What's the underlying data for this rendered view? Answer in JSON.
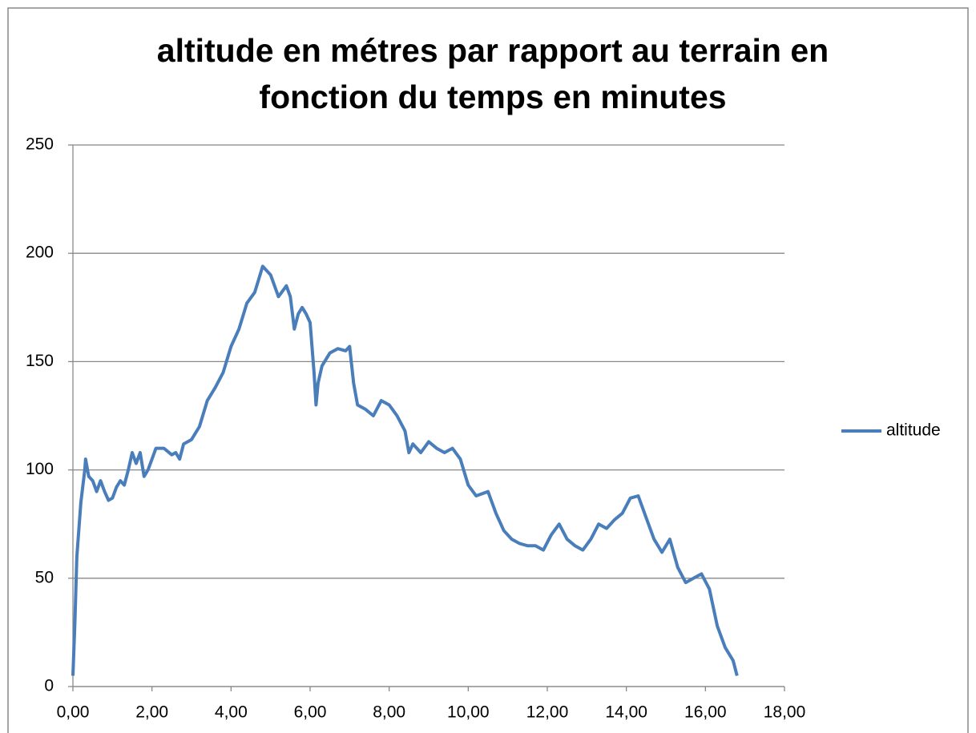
{
  "chart_data": {
    "type": "line",
    "title": "altitude en métres par rapport au terrain en fonction du temps en minutes",
    "legend": "right",
    "grid": true,
    "xlim": [
      0,
      18
    ],
    "xticks": [
      {
        "value": 0,
        "label": "0,00"
      },
      {
        "value": 2,
        "label": "2,00"
      },
      {
        "value": 4,
        "label": "4,00"
      },
      {
        "value": 6,
        "label": "6,00"
      },
      {
        "value": 8,
        "label": "8,00"
      },
      {
        "value": 10,
        "label": "10,00"
      },
      {
        "value": 12,
        "label": "12,00"
      },
      {
        "value": 14,
        "label": "14,00"
      },
      {
        "value": 16,
        "label": "16,00"
      },
      {
        "value": 18,
        "label": "18,00"
      }
    ],
    "ylim": [
      0,
      250
    ],
    "yticks": [
      0,
      50,
      100,
      150,
      200,
      250
    ],
    "x": [
      0,
      0.05,
      0.1,
      0.2,
      0.3,
      0.32,
      0.4,
      0.5,
      0.6,
      0.7,
      0.8,
      0.9,
      1.0,
      1.1,
      1.2,
      1.3,
      1.4,
      1.5,
      1.6,
      1.7,
      1.8,
      1.9,
      2.0,
      2.1,
      2.3,
      2.5,
      2.6,
      2.7,
      2.8,
      3.0,
      3.2,
      3.4,
      3.6,
      3.8,
      4.0,
      4.2,
      4.4,
      4.6,
      4.8,
      5.0,
      5.2,
      5.4,
      5.5,
      5.6,
      5.7,
      5.8,
      5.9,
      6.0,
      6.1,
      6.15,
      6.2,
      6.3,
      6.5,
      6.7,
      6.9,
      7.0,
      7.1,
      7.2,
      7.4,
      7.6,
      7.8,
      8.0,
      8.2,
      8.4,
      8.5,
      8.6,
      8.8,
      9.0,
      9.2,
      9.4,
      9.6,
      9.8,
      10.0,
      10.2,
      10.5,
      10.7,
      10.9,
      11.1,
      11.3,
      11.5,
      11.7,
      11.9,
      12.1,
      12.3,
      12.5,
      12.7,
      12.9,
      13.1,
      13.3,
      13.5,
      13.7,
      13.9,
      14.1,
      14.3,
      14.5,
      14.7,
      14.9,
      15.1,
      15.3,
      15.5,
      15.7,
      15.9,
      16.1,
      16.3,
      16.5,
      16.7,
      16.8
    ],
    "series": [
      {
        "name": "altitude",
        "color": "#4a7ebb",
        "values": [
          5,
          30,
          60,
          85,
          100,
          105,
          97,
          95,
          90,
          95,
          90,
          86,
          87,
          92,
          95,
          93,
          100,
          108,
          103,
          108,
          97,
          100,
          105,
          110,
          110,
          107,
          108,
          105,
          112,
          114,
          120,
          132,
          138,
          145,
          157,
          165,
          177,
          182,
          194,
          190,
          180,
          185,
          180,
          165,
          172,
          175,
          172,
          168,
          145,
          130,
          140,
          148,
          154,
          156,
          155,
          157,
          140,
          130,
          128,
          125,
          132,
          130,
          125,
          118,
          108,
          112,
          108,
          113,
          110,
          108,
          110,
          105,
          93,
          88,
          90,
          80,
          72,
          68,
          66,
          65,
          65,
          63,
          70,
          75,
          68,
          65,
          63,
          68,
          75,
          73,
          77,
          80,
          87,
          88,
          78,
          68,
          62,
          68,
          55,
          48,
          50,
          52,
          45,
          28,
          18,
          12,
          5
        ]
      }
    ]
  }
}
